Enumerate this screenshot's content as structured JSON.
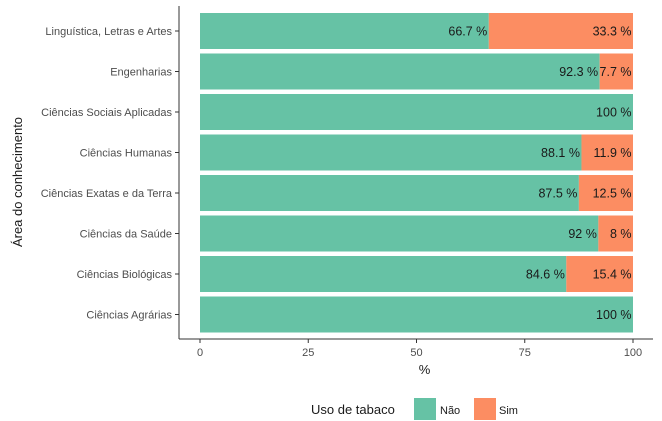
{
  "chart_data": {
    "type": "bar",
    "orientation": "horizontal",
    "stacked": true,
    "categories": [
      "Linguística, Letras e Artes",
      "Engenharias",
      "Ciências Sociais Aplicadas",
      "Ciências Humanas",
      "Ciências Exatas e da Terra",
      "Ciências da Saúde",
      "Ciências Biológicas",
      "Ciências Agrárias"
    ],
    "series": [
      {
        "name": "Não",
        "color": "#66c2a5",
        "values": [
          66.7,
          92.3,
          100,
          88.1,
          87.5,
          92,
          84.6,
          100
        ],
        "labels": [
          "66.7 %",
          "92.3 %",
          "100 %",
          "88.1 %",
          "87.5 %",
          "92 %",
          "84.6 %",
          "100 %"
        ]
      },
      {
        "name": "Sim",
        "color": "#fc8d62",
        "values": [
          33.3,
          7.7,
          0,
          11.9,
          12.5,
          8,
          15.4,
          0
        ],
        "labels": [
          "33.3 %",
          "7.7 %",
          "",
          "11.9 %",
          "12.5 %",
          "8 %",
          "15.4 %",
          ""
        ]
      }
    ],
    "xlabel": "%",
    "ylabel": "Área do conhecimento",
    "xlim": [
      0,
      100
    ],
    "xticks": [
      0,
      25,
      50,
      75,
      100
    ],
    "xtick_labels": [
      "0",
      "25",
      "50",
      "75",
      "100"
    ],
    "grid": false,
    "legend": {
      "title": "Uso de tabaco",
      "placement": "bottom",
      "entries": [
        "Não",
        "Sim"
      ]
    }
  }
}
